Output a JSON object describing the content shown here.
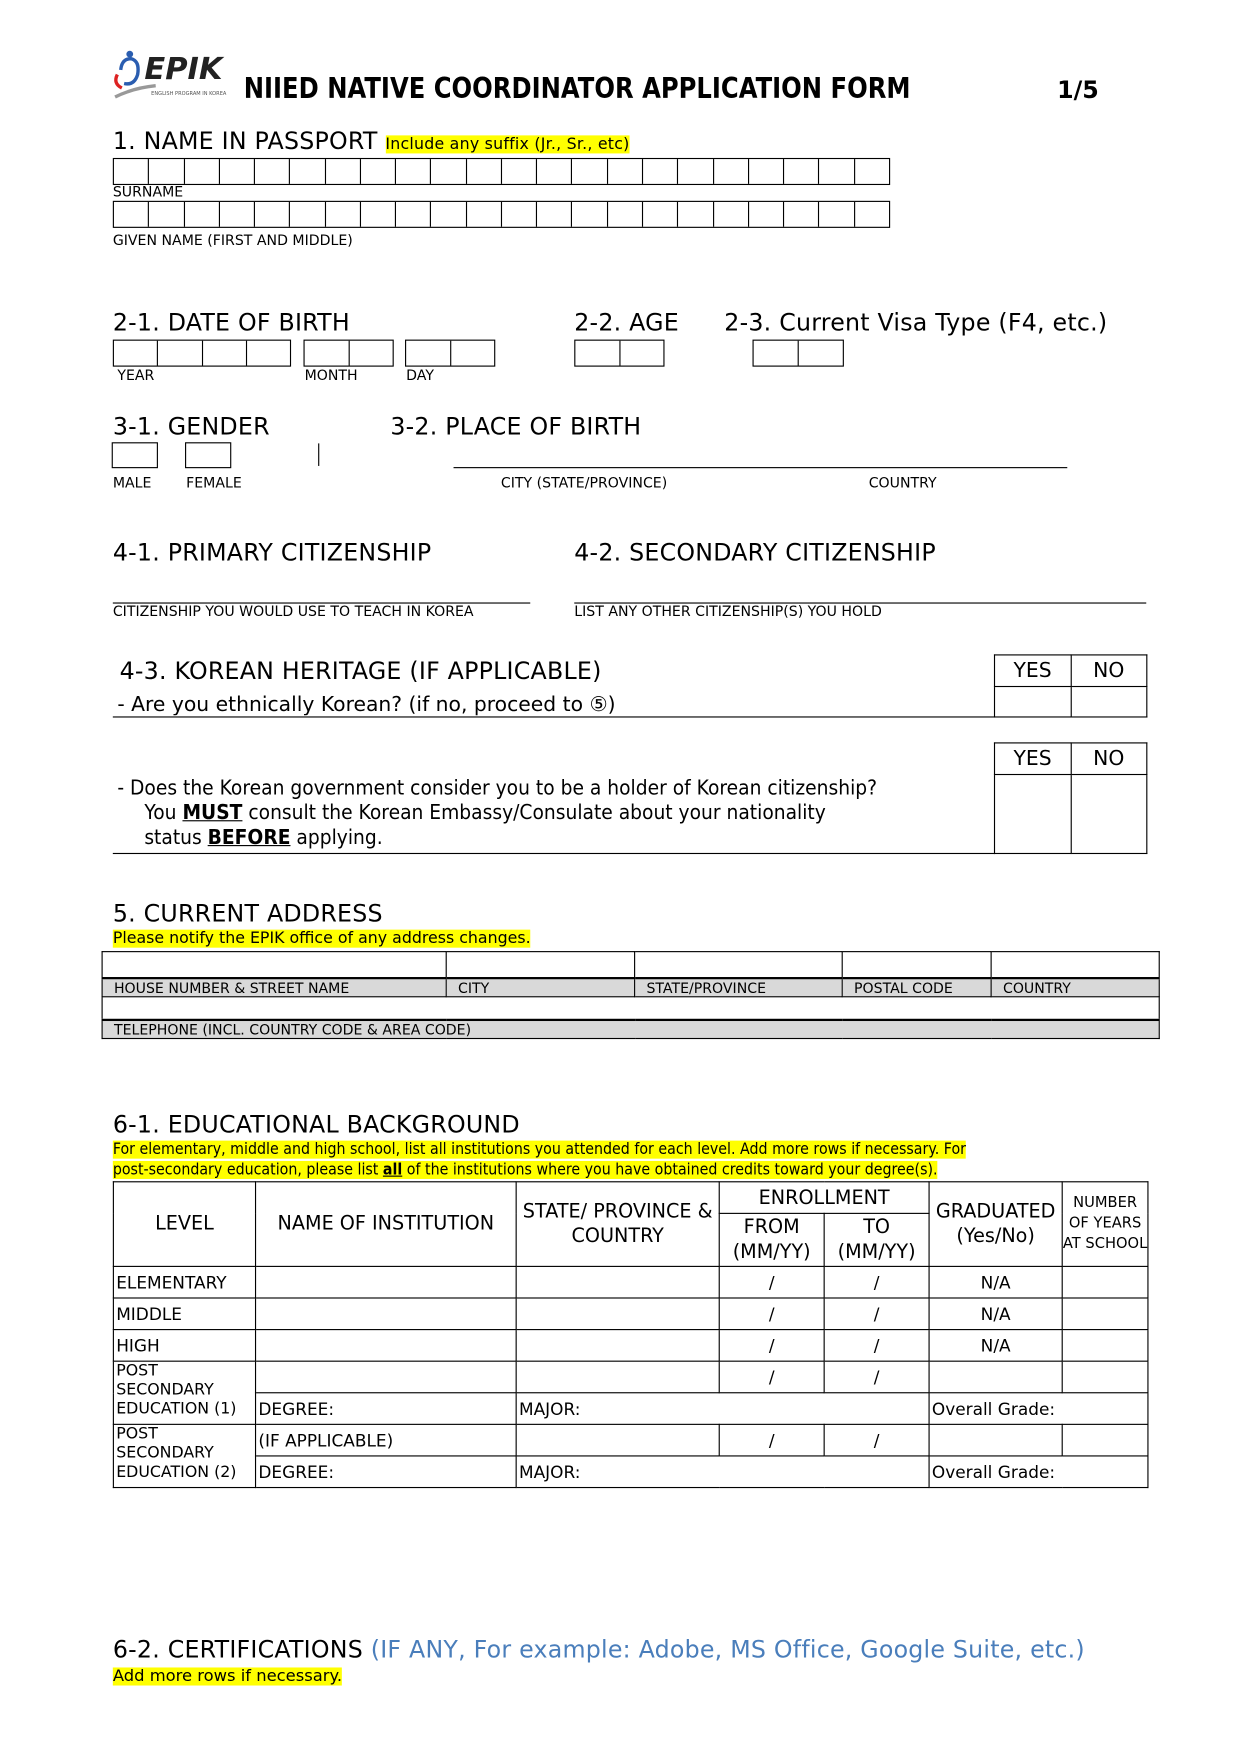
{
  "header": {
    "logo_text": "EPIK",
    "logo_subtext": "ENGLISH PROGRAM IN KOREA",
    "title": "NIIED NATIVE COORDINATOR APPLICATION FORM",
    "page": "1/5"
  },
  "s1": {
    "title": "1. NAME IN PASSPORT",
    "note": "Include any suffix (Jr., Sr., etc)",
    "surname_label": "SURNAME",
    "given_label": "GIVEN NAME (FIRST AND MIDDLE)"
  },
  "s2": {
    "dob_title": "2-1. DATE OF BIRTH",
    "year": "YEAR",
    "month": "MONTH",
    "day": "DAY",
    "age_title": "2-2. AGE",
    "visa_title": "2-3. Current Visa Type (F4, etc.)"
  },
  "s3": {
    "gender_title": "3-1. GENDER",
    "male": "MALE",
    "female": "FEMALE",
    "pob_title": "3-2. PLACE OF BIRTH",
    "city": "CITY (STATE/PROVINCE)",
    "country": "COUNTRY"
  },
  "s4": {
    "primary_title": "4-1. PRIMARY CITIZENSHIP",
    "primary_label": "CITIZENSHIP YOU WOULD USE TO TEACH IN KOREA",
    "secondary_title": "4-2. SECONDARY CITIZENSHIP",
    "secondary_label": "LIST ANY OTHER CITIZENSHIP(S) YOU HOLD",
    "heritage_title": "4-3. KOREAN HERITAGE (IF APPLICABLE)",
    "q1": "- Are you ethnically Korean? (if no, proceed to ⑤)",
    "q2_line1": "Does the Korean government consider you to be a holder of Korean citizenship?",
    "q2_you": "You ",
    "q2_must": "MUST",
    "q2_mid": " consult the Korean Embassy/Consulate about your nationality",
    "q2_status": "status ",
    "q2_before": "BEFORE",
    "q2_end": " applying.",
    "yes": "YES",
    "no": "NO"
  },
  "s5": {
    "title": "5. CURRENT ADDRESS",
    "note": "Please notify the EPIK office of any address changes.",
    "columns": [
      "HOUSE NUMBER & STREET NAME",
      "CITY",
      "STATE/PROVINCE",
      "POSTAL CODE",
      "COUNTRY"
    ],
    "telephone": "TELEPHONE (INCL. COUNTRY CODE & AREA CODE)"
  },
  "s6": {
    "title": "6-1. EDUCATIONAL BACKGROUND",
    "note_a": "For elementary, middle and high school, list all institutions you attended for each level. Add more rows if necessary. For",
    "note_b": "post-secondary education, please list ",
    "note_all": "all",
    "note_c": " of the institutions where you have obtained credits toward your degree(s).",
    "headers": {
      "level": "LEVEL",
      "institution": "NAME OF INSTITUTION",
      "state": "STATE/ PROVINCE & COUNTRY",
      "enrollment": "ENROLLMENT",
      "from": "FROM (MM/YY)",
      "to": "TO (MM/YY)",
      "graduated": "GRADUATED (Yes/No)",
      "years": "NUMBER OF YEARS AT SCHOOL"
    },
    "rows": [
      {
        "level": "ELEMENTARY",
        "grad": "N/A"
      },
      {
        "level": "MIDDLE",
        "grad": "N/A"
      },
      {
        "level": "HIGH",
        "grad": "N/A"
      }
    ],
    "post1": "POST SECONDARY EDUCATION (1)",
    "post2": "POST SECONDARY EDUCATION (2)",
    "slash": "/",
    "degree": "DEGREE:",
    "major": "MAJOR:",
    "overall": "Overall Grade:",
    "if_applicable": "(IF APPLICABLE)"
  },
  "s62": {
    "title": "6-2. CERTIFICATIONS",
    "sub": "(IF ANY, For example: Adobe, MS Office, Google Suite, etc.)",
    "note": "Add more rows if necessary.",
    "sub_color": "#4a7ebb"
  }
}
